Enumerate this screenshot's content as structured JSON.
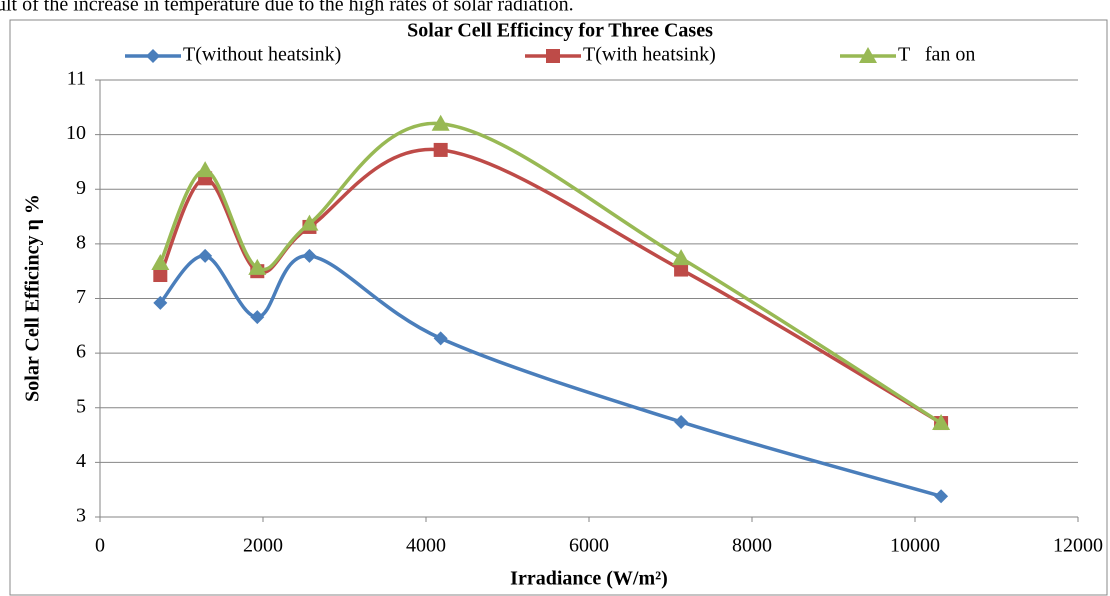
{
  "page_text": "ult of the increase in temperature due to the high rates of solar radiation.",
  "chart_data": {
    "type": "line",
    "smooth": true,
    "title": "Solar Cell Efficincy for Three Cases",
    "x_label": "Irradiance (W/m²)",
    "y_label": "Solar Cell Efficincy η %",
    "x": [
      740,
      1290,
      1930,
      2570,
      4180,
      7130,
      10320
    ],
    "series": [
      {
        "name": "T(without heatsink)",
        "color": "#4a7ebb",
        "marker": "diamond",
        "values": [
          6.92,
          7.78,
          6.66,
          7.78,
          6.27,
          4.74,
          3.38
        ]
      },
      {
        "name": "T(with heatsink)",
        "color": "#be4b48",
        "marker": "square",
        "values": [
          7.43,
          9.2,
          7.5,
          8.31,
          9.72,
          7.53,
          4.72
        ]
      },
      {
        "name": "T   fan on",
        "color": "#98b954",
        "marker": "triangle",
        "values": [
          7.65,
          9.35,
          7.56,
          8.37,
          10.2,
          7.74,
          4.72
        ]
      }
    ],
    "xlim": [
      0,
      12000
    ],
    "xticks": [
      0,
      2000,
      4000,
      6000,
      8000,
      10000,
      12000
    ],
    "ylim": [
      3,
      11
    ],
    "yticks": [
      3,
      4,
      5,
      6,
      7,
      8,
      9,
      10,
      11
    ],
    "grid": true,
    "legend": "top"
  }
}
